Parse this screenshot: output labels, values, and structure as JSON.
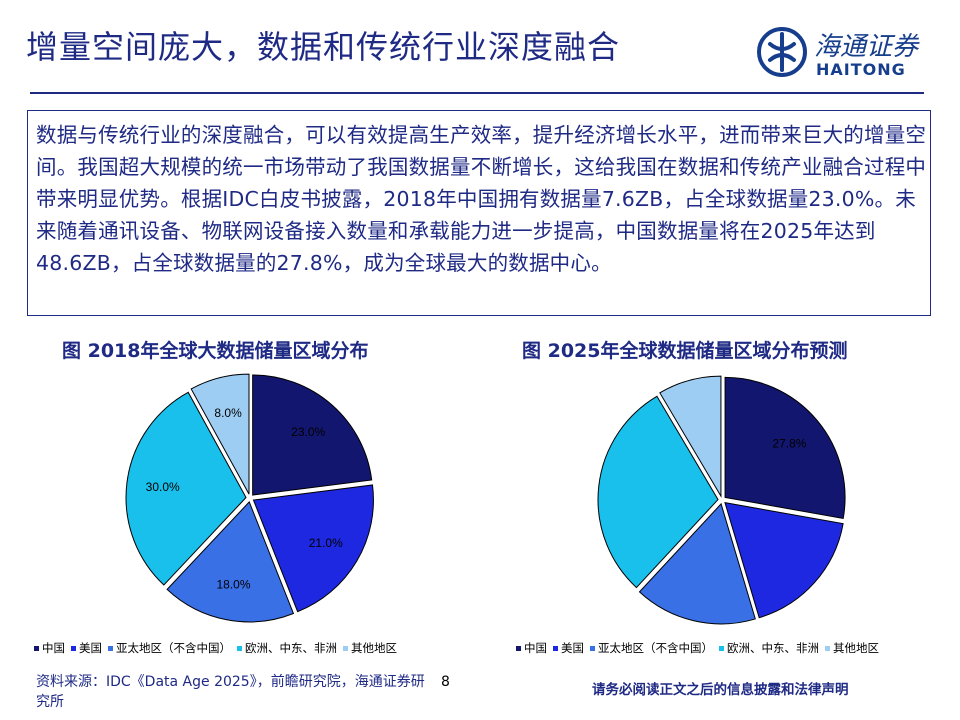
{
  "header": {
    "title": "增量空间庞大，数据和传统行业深度融合",
    "logo_cn": "海通证券",
    "logo_en": "HAITONG"
  },
  "summary": {
    "text": "数据与传统行业的深度融合，可以有效提高生产效率，提升经济增长水平，进而带来巨大的增量空间。我国超大规模的统一市场带动了我国数据量不断增长，这给我国在数据和传统产业融合过程中带来明显优势。根据IDC白皮书披露，2018年中国拥有数据量7.6ZB，占全球数据量23.0%。未来随着通讯设备、物联网设备接入数量和承载能力进一步提高，中国数据量将在2025年达到48.6ZB，占全球数据量的27.8%，成为全球最大的数据中心。"
  },
  "colors": {
    "china": "#12166e",
    "usa": "#1e28e0",
    "apac": "#3a70e6",
    "emea": "#19c0ec",
    "other": "#9ecdf4",
    "text_blue": "#1f2a85"
  },
  "chart_data": [
    {
      "type": "pie",
      "title": "图 2018年全球大数据储量区域分布",
      "categories": [
        "中国",
        "美国",
        "亚太地区（不含中国）",
        "欧洲、中东、非洲",
        "其他地区"
      ],
      "values": [
        23.0,
        21.0,
        18.0,
        30.0,
        8.0
      ],
      "labels": [
        "23.0%",
        "21.0%",
        "18.0%",
        "30.0%",
        "8.0%"
      ],
      "legend": "bottom"
    },
    {
      "type": "pie",
      "title": "图 2025年全球数据储量区域分布预测",
      "categories": [
        "中国",
        "美国",
        "亚太地区（不含中国）",
        "欧洲、中东、非洲",
        "其他地区"
      ],
      "values": [
        27.8,
        17.6,
        16.5,
        29.6,
        8.5
      ],
      "labels": [
        "27.8%",
        "",
        "",
        "",
        ""
      ],
      "legend": "bottom"
    }
  ],
  "legend_items": [
    "中国",
    "美国",
    "亚太地区（不含中国）",
    "欧洲、中东、非洲",
    "其他地区"
  ],
  "footer": {
    "source": "资料来源：IDC《Data Age 2025》，前瞻研究院，海通证券研究所",
    "page": "8",
    "disclaimer": "请务必阅读正文之后的信息披露和法律声明"
  }
}
